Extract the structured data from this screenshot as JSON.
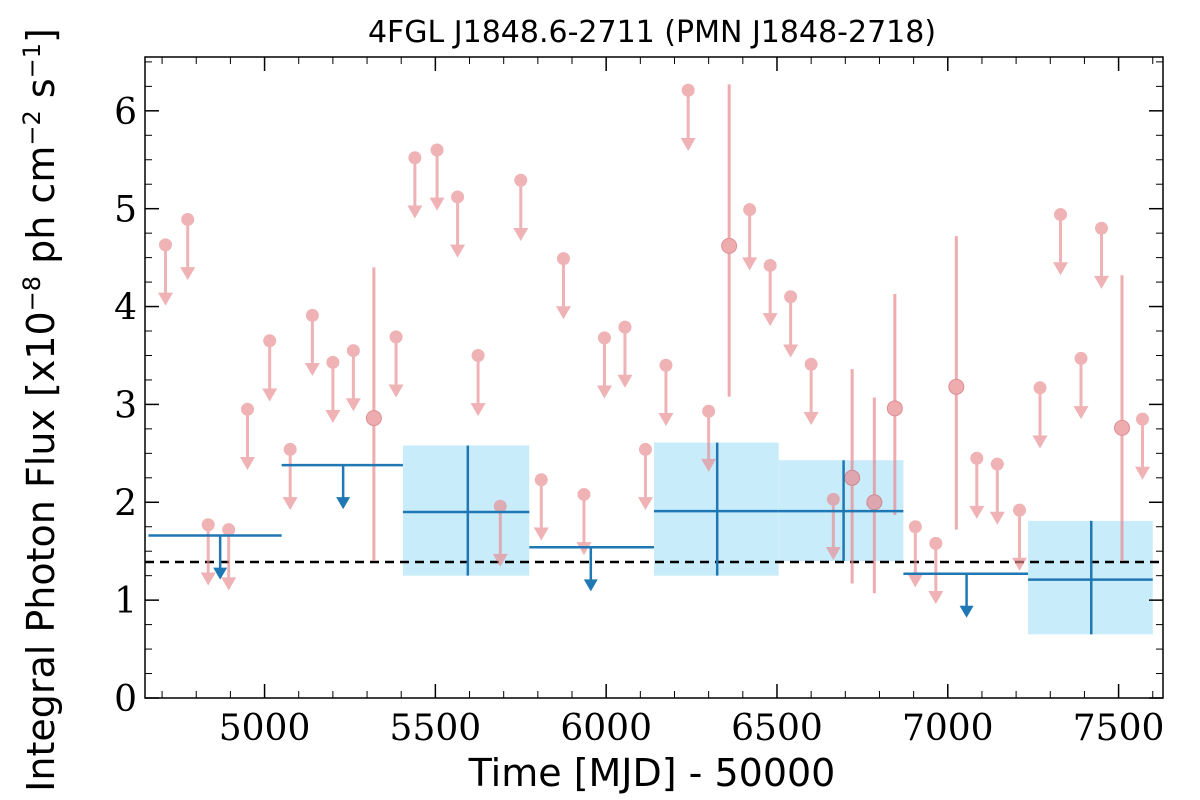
{
  "chart_data": {
    "type": "scatter",
    "title": "4FGL J1848.6-2711 (PMN J1848-2718)",
    "xlabel": "Time [MJD] - 50000",
    "ylabel": "Integral Photon Flux [x10",
    "ylabel_exp1": "−8",
    "ylabel_mid": " ph cm",
    "ylabel_exp2": "−2",
    "ylabel_mid2": " s",
    "ylabel_exp3": "−1",
    "ylabel_end": "]",
    "xlim": [
      4650,
      7630
    ],
    "ylim": [
      0,
      6.55
    ],
    "x_ticks": [
      5000,
      5500,
      6000,
      6500,
      7000,
      7500
    ],
    "x_tick_labels": [
      "5000",
      "5500",
      "6000",
      "6500",
      "7000",
      "7500"
    ],
    "y_ticks": [
      0,
      1,
      2,
      3,
      4,
      5,
      6
    ],
    "y_tick_labels": [
      "0",
      "1",
      "2",
      "3",
      "4",
      "5",
      "6"
    ],
    "average_flux": 1.39,
    "colors": {
      "fine": "#e8898e",
      "long": "#1f77b4",
      "band": "#c9ecfb",
      "average": "#000000"
    },
    "fine_upper_limits": [
      {
        "x": 4710,
        "y": 4.63
      },
      {
        "x": 4775,
        "y": 4.89
      },
      {
        "x": 4835,
        "y": 1.77
      },
      {
        "x": 4895,
        "y": 1.72
      },
      {
        "x": 4950,
        "y": 2.95
      },
      {
        "x": 5015,
        "y": 3.65
      },
      {
        "x": 5075,
        "y": 2.54
      },
      {
        "x": 5140,
        "y": 3.91
      },
      {
        "x": 5200,
        "y": 3.43
      },
      {
        "x": 5260,
        "y": 3.55
      },
      {
        "x": 5385,
        "y": 3.69
      },
      {
        "x": 5440,
        "y": 5.52
      },
      {
        "x": 5505,
        "y": 5.6
      },
      {
        "x": 5565,
        "y": 5.12
      },
      {
        "x": 5625,
        "y": 3.5
      },
      {
        "x": 5690,
        "y": 1.96
      },
      {
        "x": 5750,
        "y": 5.29
      },
      {
        "x": 5810,
        "y": 2.23
      },
      {
        "x": 5875,
        "y": 4.49
      },
      {
        "x": 5935,
        "y": 2.08
      },
      {
        "x": 5995,
        "y": 3.68
      },
      {
        "x": 6055,
        "y": 3.79
      },
      {
        "x": 6115,
        "y": 2.54
      },
      {
        "x": 6175,
        "y": 3.4
      },
      {
        "x": 6240,
        "y": 6.21
      },
      {
        "x": 6300,
        "y": 2.93
      },
      {
        "x": 6420,
        "y": 4.99
      },
      {
        "x": 6480,
        "y": 4.42
      },
      {
        "x": 6540,
        "y": 4.1
      },
      {
        "x": 6600,
        "y": 3.41
      },
      {
        "x": 6665,
        "y": 2.03
      },
      {
        "x": 6905,
        "y": 1.75
      },
      {
        "x": 6965,
        "y": 1.58
      },
      {
        "x": 7085,
        "y": 2.45
      },
      {
        "x": 7145,
        "y": 2.39
      },
      {
        "x": 7210,
        "y": 1.92
      },
      {
        "x": 7270,
        "y": 3.17
      },
      {
        "x": 7330,
        "y": 4.94
      },
      {
        "x": 7390,
        "y": 3.47
      },
      {
        "x": 7450,
        "y": 4.8
      },
      {
        "x": 7570,
        "y": 2.85
      }
    ],
    "fine_detections": [
      {
        "x": 5320,
        "y": 2.86,
        "ylo": 1.4,
        "yhi": 4.4
      },
      {
        "x": 6360,
        "y": 4.62,
        "ylo": 3.08,
        "yhi": 6.27
      },
      {
        "x": 6720,
        "y": 2.25,
        "ylo": 1.17,
        "yhi": 3.36
      },
      {
        "x": 6785,
        "y": 2.0,
        "ylo": 1.07,
        "yhi": 3.07
      },
      {
        "x": 6845,
        "y": 2.96,
        "ylo": 1.87,
        "yhi": 4.13
      },
      {
        "x": 7025,
        "y": 3.18,
        "ylo": 1.72,
        "yhi": 4.72
      },
      {
        "x": 7510,
        "y": 2.76,
        "ylo": 1.4,
        "yhi": 4.32
      }
    ],
    "long_upper_limits": [
      {
        "x0": 4660,
        "x1": 5050,
        "xc": 4870,
        "y": 1.66
      },
      {
        "x0": 5050,
        "x1": 5405,
        "xc": 5230,
        "y": 2.38
      },
      {
        "x0": 5775,
        "x1": 6140,
        "xc": 5955,
        "y": 1.54
      },
      {
        "x0": 6870,
        "x1": 7235,
        "xc": 7055,
        "y": 1.27
      }
    ],
    "long_detections": [
      {
        "x0": 5405,
        "x1": 5775,
        "xc": 5595,
        "y": 1.9,
        "ylo": 1.25,
        "yhi": 2.58
      },
      {
        "x0": 6140,
        "x1": 6505,
        "xc": 6325,
        "y": 1.91,
        "ylo": 1.25,
        "yhi": 2.61
      },
      {
        "x0": 6505,
        "x1": 6870,
        "xc": 6695,
        "y": 1.91,
        "ylo": 1.4,
        "yhi": 2.43
      },
      {
        "x0": 7235,
        "x1": 7600,
        "xc": 7420,
        "y": 1.21,
        "ylo": 0.65,
        "yhi": 1.81
      }
    ]
  }
}
